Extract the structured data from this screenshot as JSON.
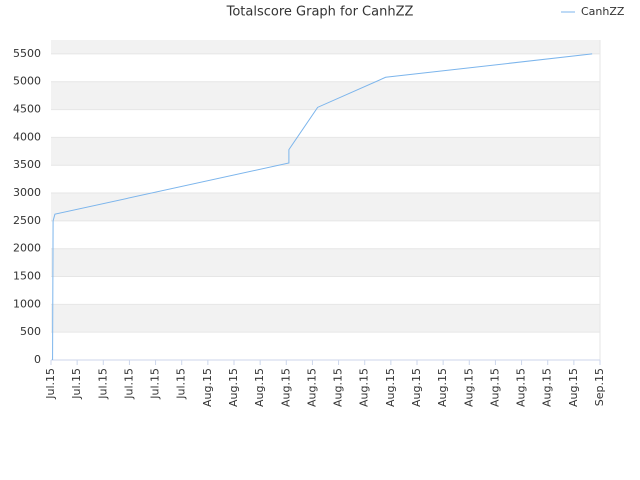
{
  "chart_data": {
    "type": "line",
    "title": "Totalscore Graph for CanhZZ",
    "series": [
      {
        "name": "CanhZZ",
        "color": "#7cb5ec",
        "x": [
          0.06,
          0.08,
          0.15,
          9.1,
          9.1,
          10.2,
          12.8,
          20.7
        ],
        "values": [
          0,
          2500,
          2620,
          3540,
          3780,
          4540,
          5080,
          5500
        ]
      }
    ],
    "xlim": [
      0,
      21
    ],
    "xticks": [
      {
        "value": 0,
        "label": "Jul.15"
      },
      {
        "value": 1,
        "label": "Jul.15"
      },
      {
        "value": 2,
        "label": "Jul.15"
      },
      {
        "value": 3,
        "label": "Jul.15"
      },
      {
        "value": 4,
        "label": "Jul.15"
      },
      {
        "value": 5,
        "label": "Jul.15"
      },
      {
        "value": 6,
        "label": "Aug.15"
      },
      {
        "value": 7,
        "label": "Aug.15"
      },
      {
        "value": 8,
        "label": "Aug.15"
      },
      {
        "value": 9,
        "label": "Aug.15"
      },
      {
        "value": 10,
        "label": "Aug.15"
      },
      {
        "value": 11,
        "label": "Aug.15"
      },
      {
        "value": 12,
        "label": "Aug.15"
      },
      {
        "value": 13,
        "label": "Aug.15"
      },
      {
        "value": 14,
        "label": "Aug.15"
      },
      {
        "value": 15,
        "label": "Aug.15"
      },
      {
        "value": 16,
        "label": "Aug.15"
      },
      {
        "value": 17,
        "label": "Aug.15"
      },
      {
        "value": 18,
        "label": "Aug.15"
      },
      {
        "value": 19,
        "label": "Aug.15"
      },
      {
        "value": 20,
        "label": "Aug.15"
      },
      {
        "value": 21,
        "label": "Sep.15"
      }
    ],
    "ylim": [
      0,
      5750
    ],
    "yticks": [
      0,
      500,
      1000,
      1500,
      2000,
      2500,
      3000,
      3500,
      4000,
      4500,
      5000,
      5500
    ],
    "grid": true,
    "legend": "top-right"
  }
}
